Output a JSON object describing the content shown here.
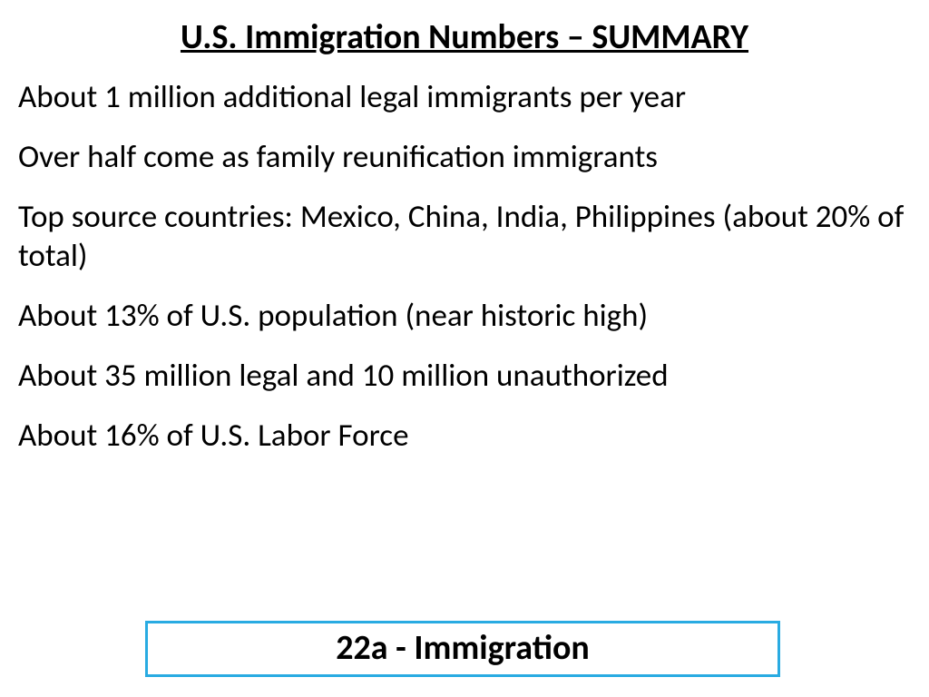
{
  "title": "U.S. Immigration Numbers – SUMMARY",
  "bullets": [
    "About 1 million additional legal immigrants per year",
    "Over half come as family reunification immigrants",
    "Top source countries: Mexico, China, India, Philippines (about 20% of total)",
    "About 13% of U.S. population (near historic high)",
    "About 35 million legal and 10 million unauthorized",
    "About 16% of U.S. Labor Force"
  ],
  "footer": "22a - Immigration",
  "style": {
    "background_color": "#ffffff",
    "text_color": "#000000",
    "title_fontsize": 38,
    "title_weight": 700,
    "title_underline": true,
    "body_fontsize": 35,
    "body_weight": 400,
    "footer_fontsize": 38,
    "footer_weight": 700,
    "footer_border_color": "#29abe2",
    "footer_border_width": 3,
    "font_family": "Calibri"
  }
}
